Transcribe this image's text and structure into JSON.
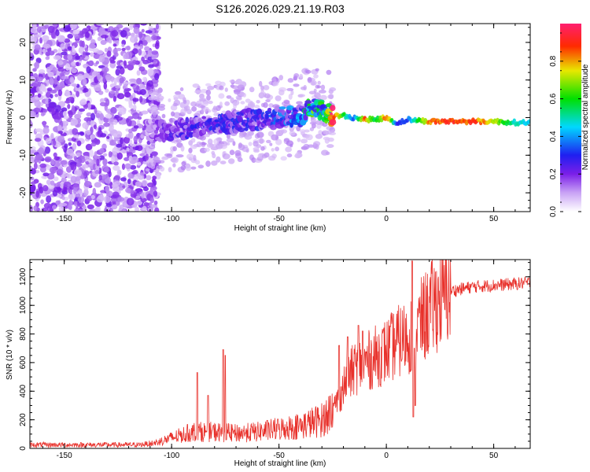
{
  "title": "S126.2026.029.21.19.R03",
  "chart_data": [
    {
      "type": "heatmap",
      "title": "S126.2026.029.21.19.R03",
      "xlabel": "Height of straight line (km)",
      "ylabel": "Frequency (Hz)",
      "xlim": [
        -166,
        67
      ],
      "ylim": [
        -25,
        25
      ],
      "xticks": [
        -150,
        -100,
        -50,
        0,
        50
      ],
      "yticks": [
        -20,
        -10,
        0,
        10,
        20
      ],
      "xtick_labels": [
        "-150",
        "-100",
        "-50",
        "0",
        "50"
      ],
      "ytick_labels": [
        "-20",
        "-10",
        "0",
        "10",
        "20"
      ],
      "colorbar": {
        "label": "Normalized spectral amplitude",
        "range": [
          0,
          1
        ],
        "ticks": [
          0.0,
          0.2,
          0.4,
          0.6,
          0.8
        ],
        "tick_labels": [
          "0.0",
          "0.2",
          "0.4",
          "0.6",
          "0.8"
        ]
      },
      "ridge": {
        "x": [
          -112,
          -100,
          -90,
          -80,
          -70,
          -60,
          -50,
          -40,
          -35,
          -30,
          -25,
          -20,
          -15,
          -10,
          -5,
          0,
          5,
          10,
          20,
          30,
          40,
          50,
          60,
          67
        ],
        "freq": [
          -3,
          -3.5,
          -2.5,
          -1.5,
          -1,
          -0.5,
          0,
          0.5,
          2.5,
          2,
          0.5,
          0.5,
          0,
          -0.5,
          -0.5,
          0,
          -1.5,
          -0.5,
          -1,
          -1,
          -1,
          -1,
          -1.3,
          -1.3
        ],
        "amp": [
          0.15,
          0.2,
          0.25,
          0.25,
          0.25,
          0.25,
          0.3,
          0.35,
          0.55,
          0.5,
          0.9,
          0.6,
          0.35,
          0.85,
          0.55,
          0.9,
          0.3,
          0.35,
          0.85,
          0.9,
          0.9,
          0.75,
          0.5,
          0.45
        ]
      }
    },
    {
      "type": "line",
      "xlabel": "Height of straight line (km)",
      "ylabel": "SNR (10 * v/v)",
      "xlim": [
        -166,
        67
      ],
      "ylim": [
        0,
        1320
      ],
      "xticks": [
        -150,
        -100,
        -50,
        0,
        50
      ],
      "yticks": [
        0,
        200,
        400,
        600,
        800,
        1000,
        1200
      ],
      "xtick_labels": [
        "-150",
        "-100",
        "-50",
        "0",
        "50"
      ],
      "ytick_labels": [
        "0",
        "200",
        "400",
        "600",
        "800",
        "1000",
        "1200"
      ],
      "color": "#e8312b",
      "series": [
        {
          "name": "SNR",
          "envelope_x": [
            -166,
            -150,
            -130,
            -115,
            -108,
            -100,
            -90,
            -80,
            -70,
            -60,
            -50,
            -40,
            -30,
            -25,
            -20,
            -15,
            -10,
            -5,
            0,
            5,
            10,
            15,
            20,
            25,
            30,
            40,
            50,
            60,
            67
          ],
          "envelope_y": [
            25,
            25,
            25,
            25,
            35,
            70,
            110,
            110,
            100,
            110,
            130,
            150,
            190,
            260,
            430,
            560,
            600,
            640,
            680,
            740,
            780,
            860,
            960,
            1050,
            1100,
            1130,
            1140,
            1150,
            1160
          ],
          "spikes_x": [
            -88,
            -83,
            -76,
            -75,
            -22,
            -18,
            -13,
            -11,
            12,
            12.5,
            13,
            13.5
          ],
          "spikes_y": [
            530,
            370,
            690,
            650,
            720,
            780,
            860,
            820,
            1310,
            220,
            700,
            300
          ]
        }
      ]
    }
  ]
}
